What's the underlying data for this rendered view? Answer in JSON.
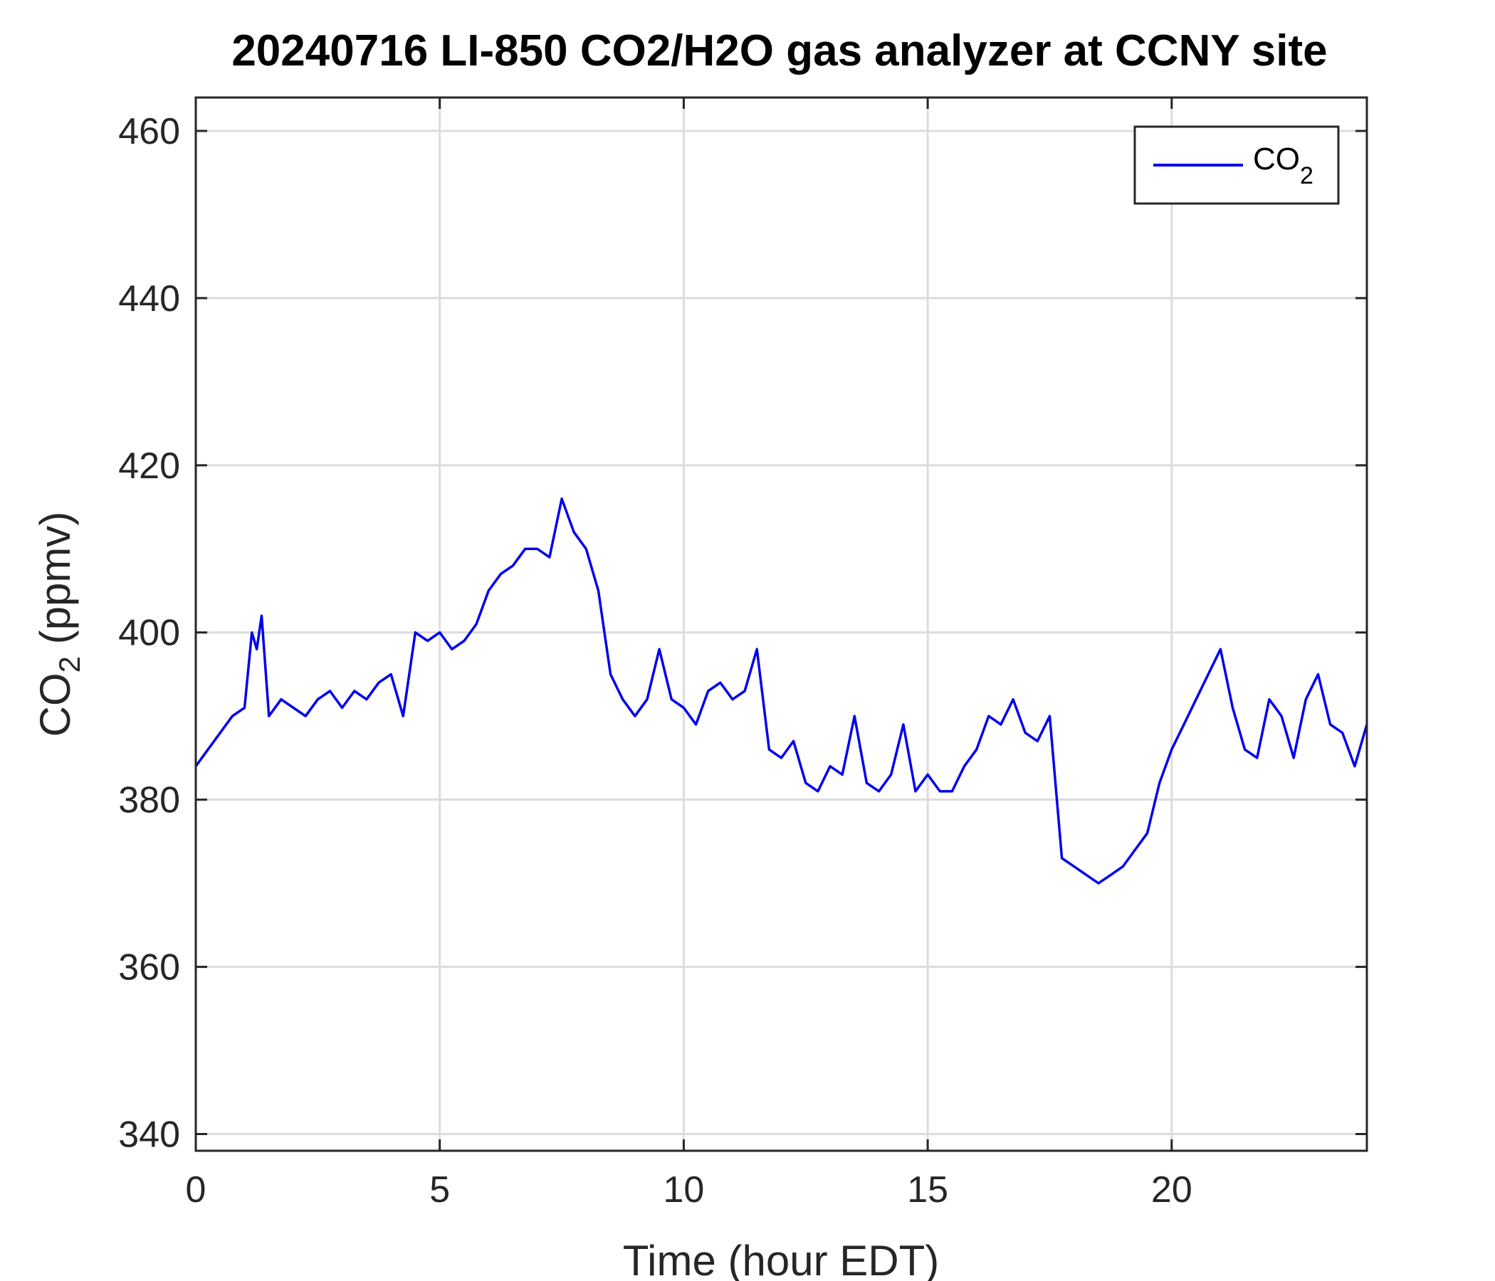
{
  "chart_data": {
    "type": "line",
    "title": "20240716 LI-850 CO2/H2O gas analyzer at CCNY site",
    "xlabel": "Time (hour EDT)",
    "ylabel": {
      "main": "CO",
      "sub": "2",
      "suffix": " (ppmv)"
    },
    "xlim": [
      0,
      24
    ],
    "ylim": [
      338,
      464
    ],
    "xticks": [
      0,
      5,
      10,
      15,
      20
    ],
    "yticks": [
      340,
      360,
      380,
      400,
      420,
      440,
      460
    ],
    "grid": true,
    "legend": {
      "position": "top-right",
      "main": "CO",
      "sub": "2"
    },
    "colors": {
      "series": "#0000ee",
      "axes": "#262626",
      "grid": "#dcdcdc"
    },
    "series": [
      {
        "name": "CO2",
        "x": [
          0,
          0.25,
          0.5,
          0.75,
          1.0,
          1.15,
          1.25,
          1.35,
          1.5,
          1.75,
          2.0,
          2.25,
          2.5,
          2.75,
          3.0,
          3.25,
          3.5,
          3.75,
          4.0,
          4.25,
          4.5,
          4.75,
          5.0,
          5.25,
          5.5,
          5.75,
          6.0,
          6.25,
          6.5,
          6.75,
          7.0,
          7.25,
          7.5,
          7.75,
          8.0,
          8.25,
          8.5,
          8.75,
          9.0,
          9.25,
          9.5,
          9.75,
          10.0,
          10.25,
          10.5,
          10.75,
          11.0,
          11.25,
          11.5,
          11.75,
          12.0,
          12.25,
          12.5,
          12.75,
          13.0,
          13.25,
          13.5,
          13.75,
          14.0,
          14.25,
          14.5,
          14.75,
          15.0,
          15.25,
          15.5,
          15.75,
          16.0,
          16.25,
          16.5,
          16.75,
          17.0,
          17.25,
          17.5,
          17.75,
          18.0,
          18.25,
          18.5,
          18.75,
          19.0,
          19.25,
          19.5,
          19.75,
          20.0,
          20.25,
          20.5,
          20.75,
          21.0,
          21.25,
          21.5,
          21.75,
          22.0,
          22.25,
          22.5,
          22.75,
          23.0,
          23.25,
          23.5,
          23.75,
          24.0
        ],
        "y": [
          384,
          386,
          388,
          390,
          391,
          400,
          398,
          402,
          390,
          392,
          391,
          390,
          392,
          393,
          391,
          393,
          392,
          394,
          395,
          390,
          400,
          399,
          400,
          398,
          399,
          401,
          405,
          407,
          408,
          410,
          410,
          409,
          416,
          412,
          410,
          405,
          395,
          392,
          390,
          392,
          398,
          392,
          391,
          389,
          393,
          394,
          392,
          393,
          398,
          386,
          385,
          387,
          382,
          381,
          384,
          383,
          390,
          382,
          381,
          383,
          389,
          381,
          383,
          381,
          381,
          384,
          386,
          390,
          389,
          392,
          388,
          387,
          390,
          373,
          372,
          371,
          370,
          371,
          372,
          374,
          376,
          382,
          386,
          389,
          392,
          395,
          398,
          391,
          386,
          385,
          392,
          390,
          385,
          392,
          395,
          389,
          388,
          384,
          389
        ],
        "color": "#0000ee"
      }
    ]
  }
}
